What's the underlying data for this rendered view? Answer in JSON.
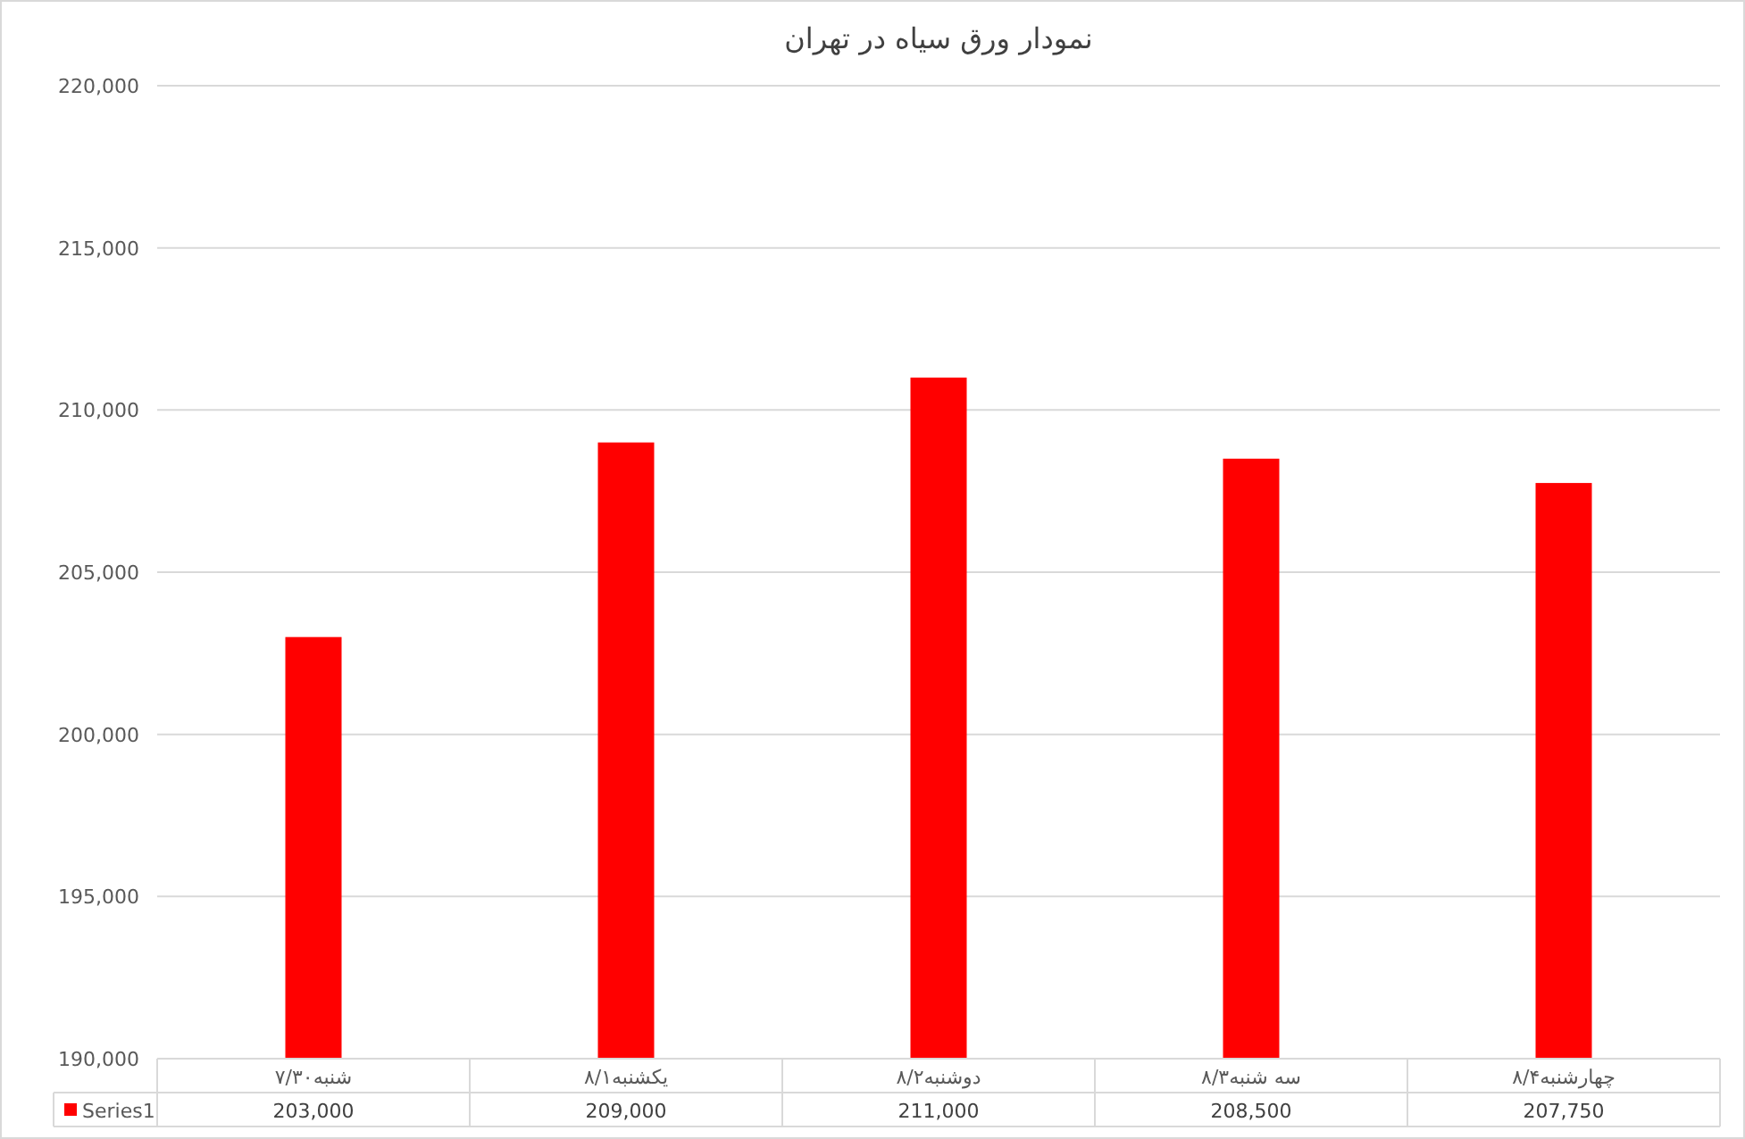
{
  "chart_data": {
    "type": "bar",
    "title": "نمودار ورق سیاه در تهران",
    "categories": [
      "شنبه۷/۳۰",
      "یکشنبه۸/۱",
      "دوشنبه۸/۲",
      "سه شنبه۸/۳",
      "چهارشنبه۸/۴"
    ],
    "series": [
      {
        "name": "Series1",
        "color": "#ff0000",
        "values": [
          203000,
          209000,
          211000,
          208500,
          207750
        ],
        "value_labels": [
          "203,000",
          "209,000",
          "211,000",
          "208,500",
          "207,750"
        ]
      }
    ],
    "ylim": [
      190000,
      220000
    ],
    "yticks": [
      {
        "value": 190000,
        "label": "190,000"
      },
      {
        "value": 195000,
        "label": "195,000"
      },
      {
        "value": 200000,
        "label": "200,000"
      },
      {
        "value": 205000,
        "label": "205,000"
      },
      {
        "value": 210000,
        "label": "210,000"
      },
      {
        "value": 215000,
        "label": "215,000"
      },
      {
        "value": 220000,
        "label": "220,000"
      }
    ],
    "grid": "y",
    "legend": "bottom"
  }
}
